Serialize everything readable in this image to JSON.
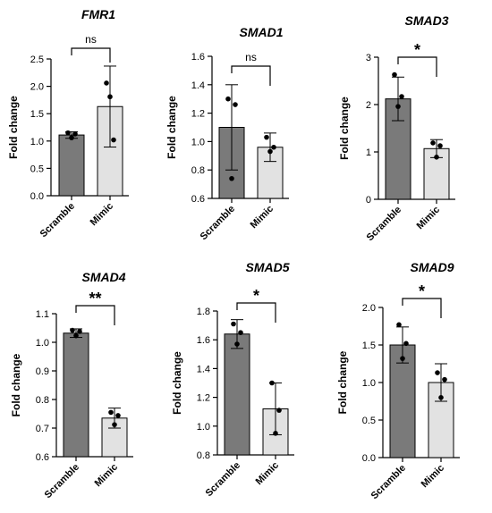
{
  "chart_data": [
    {
      "type": "bar",
      "title": "FMR1",
      "ylabel": "Fold change",
      "categories": [
        "Scramble",
        "Mimic"
      ],
      "values": [
        1.11,
        1.63
      ],
      "errors": [
        0.06,
        0.74
      ],
      "points": [
        [
          1.15,
          1.13,
          1.06
        ],
        [
          2.06,
          1.02,
          1.81
        ]
      ],
      "ylim": [
        0.0,
        2.5
      ],
      "yticks": [
        "0.0",
        "0.5",
        "1.0",
        "1.5",
        "2.0",
        "2.5"
      ],
      "significance": "ns",
      "bar_colors": [
        "#7a7a7a",
        "#e2e2e2"
      ]
    },
    {
      "type": "bar",
      "title": "SMAD1",
      "ylabel": "Fold change",
      "categories": [
        "Scramble",
        "Mimic"
      ],
      "values": [
        1.1,
        0.96
      ],
      "errors": [
        0.3,
        0.1
      ],
      "points": [
        [
          1.3,
          1.26,
          0.74
        ],
        [
          1.03,
          0.96,
          0.93
        ]
      ],
      "ylim": [
        0.6,
        1.6
      ],
      "yticks": [
        "0.6",
        "0.8",
        "1.0",
        "1.2",
        "1.4",
        "1.6"
      ],
      "significance": "ns",
      "bar_colors": [
        "#7a7a7a",
        "#e2e2e2"
      ]
    },
    {
      "type": "bar",
      "title": "SMAD3",
      "ylabel": "Fold change",
      "categories": [
        "Scramble",
        "Mimic"
      ],
      "values": [
        2.12,
        1.07
      ],
      "errors": [
        0.46,
        0.19
      ],
      "points": [
        [
          2.63,
          2.17,
          1.96
        ],
        [
          1.19,
          1.13,
          0.89
        ]
      ],
      "ylim": [
        0,
        3
      ],
      "yticks": [
        "0",
        "1",
        "2",
        "3"
      ],
      "significance": "*",
      "bar_colors": [
        "#7a7a7a",
        "#e2e2e2"
      ]
    },
    {
      "type": "bar",
      "title": "SMAD4",
      "ylabel": "Fold change",
      "categories": [
        "Scramble",
        "Mimic"
      ],
      "values": [
        1.032,
        0.735
      ],
      "errors": [
        0.015,
        0.035
      ],
      "points": [
        [
          1.042,
          1.038,
          1.023
        ],
        [
          0.755,
          0.744,
          0.712
        ]
      ],
      "ylim": [
        0.6,
        1.1
      ],
      "yticks": [
        "0.6",
        "0.7",
        "0.8",
        "0.9",
        "1.0",
        "1.1"
      ],
      "significance": "**",
      "bar_colors": [
        "#7a7a7a",
        "#e2e2e2"
      ]
    },
    {
      "type": "bar",
      "title": "SMAD5",
      "ylabel": "Fold change",
      "categories": [
        "Scramble",
        "Mimic"
      ],
      "values": [
        1.64,
        1.12
      ],
      "errors": [
        0.1,
        0.18
      ],
      "points": [
        [
          1.71,
          1.65,
          1.57
        ],
        [
          1.3,
          1.11,
          0.95
        ]
      ],
      "ylim": [
        0.8,
        1.8
      ],
      "yticks": [
        "0.8",
        "1.0",
        "1.2",
        "1.4",
        "1.6",
        "1.8"
      ],
      "significance": "*",
      "bar_colors": [
        "#7a7a7a",
        "#e2e2e2"
      ]
    },
    {
      "type": "bar",
      "title": "SMAD9",
      "ylabel": "Fold change",
      "categories": [
        "Scramble",
        "Mimic"
      ],
      "values": [
        1.5,
        1.0
      ],
      "errors": [
        0.24,
        0.25
      ],
      "points": [
        [
          1.77,
          1.52,
          1.32
        ],
        [
          1.13,
          1.04,
          0.8
        ]
      ],
      "ylim": [
        0.0,
        2.0
      ],
      "yticks": [
        "0.0",
        "0.5",
        "1.0",
        "1.5",
        "2.0"
      ],
      "significance": "*",
      "bar_colors": [
        "#7a7a7a",
        "#e2e2e2"
      ]
    }
  ]
}
